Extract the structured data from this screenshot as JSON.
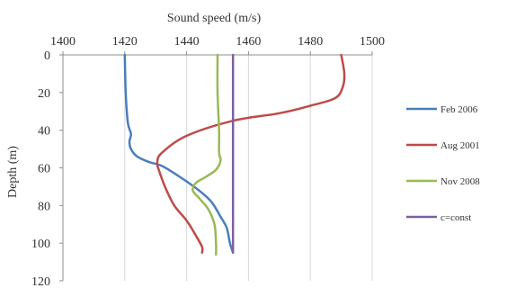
{
  "chart_data": {
    "type": "line",
    "xlabel": "Sound speed (m/s)",
    "ylabel": "Depth (m)",
    "xlim": [
      1400,
      1500
    ],
    "ylim": [
      0,
      120
    ],
    "y_inverted": true,
    "x_axis_position": "top",
    "x_ticks": [
      "1400",
      "1420",
      "1440",
      "1460",
      "1480",
      "1500"
    ],
    "y_ticks": [
      "0",
      "20",
      "40",
      "60",
      "80",
      "100",
      "120"
    ],
    "grid": "vertical",
    "legend_position": "right",
    "series": [
      {
        "name": "Feb 2006",
        "color": "#4a7ebb",
        "points": [
          [
            1420,
            0
          ],
          [
            1420.3,
            20
          ],
          [
            1421,
            36
          ],
          [
            1422,
            42
          ],
          [
            1421.5,
            46
          ],
          [
            1422,
            50
          ],
          [
            1424,
            54
          ],
          [
            1428,
            57
          ],
          [
            1432,
            59
          ],
          [
            1438,
            65
          ],
          [
            1444,
            72
          ],
          [
            1448,
            78
          ],
          [
            1451,
            86
          ],
          [
            1453,
            92
          ],
          [
            1454,
            100
          ],
          [
            1455,
            105
          ]
        ]
      },
      {
        "name": "Aug 2001",
        "color": "#be4b48",
        "points": [
          [
            1490,
            0
          ],
          [
            1491,
            10
          ],
          [
            1490.5,
            17
          ],
          [
            1488,
            23
          ],
          [
            1480,
            27
          ],
          [
            1470,
            31
          ],
          [
            1455,
            35
          ],
          [
            1440,
            43
          ],
          [
            1432,
            52
          ],
          [
            1430.5,
            57
          ],
          [
            1431,
            61
          ],
          [
            1433,
            70
          ],
          [
            1436,
            80
          ],
          [
            1440,
            88
          ],
          [
            1443,
            96
          ],
          [
            1445,
            102
          ],
          [
            1445,
            105
          ]
        ]
      },
      {
        "name": "Nov 2008",
        "color": "#98b954",
        "points": [
          [
            1450,
            0
          ],
          [
            1450,
            20
          ],
          [
            1450.5,
            40
          ],
          [
            1450.5,
            52
          ],
          [
            1451,
            56
          ],
          [
            1449.5,
            61
          ],
          [
            1446,
            65
          ],
          [
            1443,
            68
          ],
          [
            1442,
            72
          ],
          [
            1444,
            76
          ],
          [
            1447,
            82
          ],
          [
            1449,
            90
          ],
          [
            1449.5,
            100
          ],
          [
            1449.5,
            106
          ]
        ]
      },
      {
        "name": "c=const",
        "color": "#7d60a0",
        "points": [
          [
            1455,
            0
          ],
          [
            1455,
            105
          ]
        ]
      }
    ]
  }
}
